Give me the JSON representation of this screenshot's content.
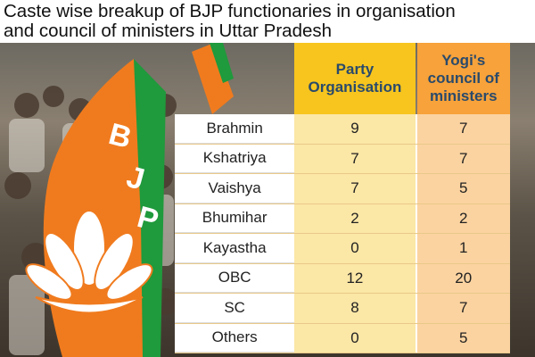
{
  "title_lines": [
    "Caste wise breakup of BJP functionaries in organisation",
    "and council of ministers in Uttar Pradesh"
  ],
  "colors": {
    "header_party": "#f7c51e",
    "header_yogi": "#f7a23a",
    "cell_party": "#fbe7a6",
    "cell_yogi": "#fbd3a0",
    "header_text": "#2a4a6b",
    "flag_saffron": "#f07b1e",
    "flag_green": "#1f9a3c"
  },
  "icons": [
    "bjp-flag-lotus-icon"
  ],
  "chart_data": {
    "type": "table",
    "title": "Caste wise breakup of BJP functionaries in organisation and council of ministers in Uttar Pradesh",
    "columns": [
      "Party Organisation",
      "Yogi's council of ministers"
    ],
    "rows": [
      {
        "label": "Brahmin",
        "values": [
          "9",
          "7"
        ]
      },
      {
        "label": "Kshatriya",
        "values": [
          "7",
          "7"
        ]
      },
      {
        "label": "Vaishya",
        "values": [
          "7",
          "5"
        ]
      },
      {
        "label": "Bhumihar",
        "values": [
          "2",
          "2"
        ]
      },
      {
        "label": "Kayastha",
        "values": [
          "0",
          "1"
        ]
      },
      {
        "label": "OBC",
        "values": [
          "12",
          "20"
        ]
      },
      {
        "label": "SC",
        "values": [
          "8",
          "7"
        ]
      },
      {
        "label": "Others",
        "values": [
          "0",
          "5"
        ]
      }
    ]
  }
}
